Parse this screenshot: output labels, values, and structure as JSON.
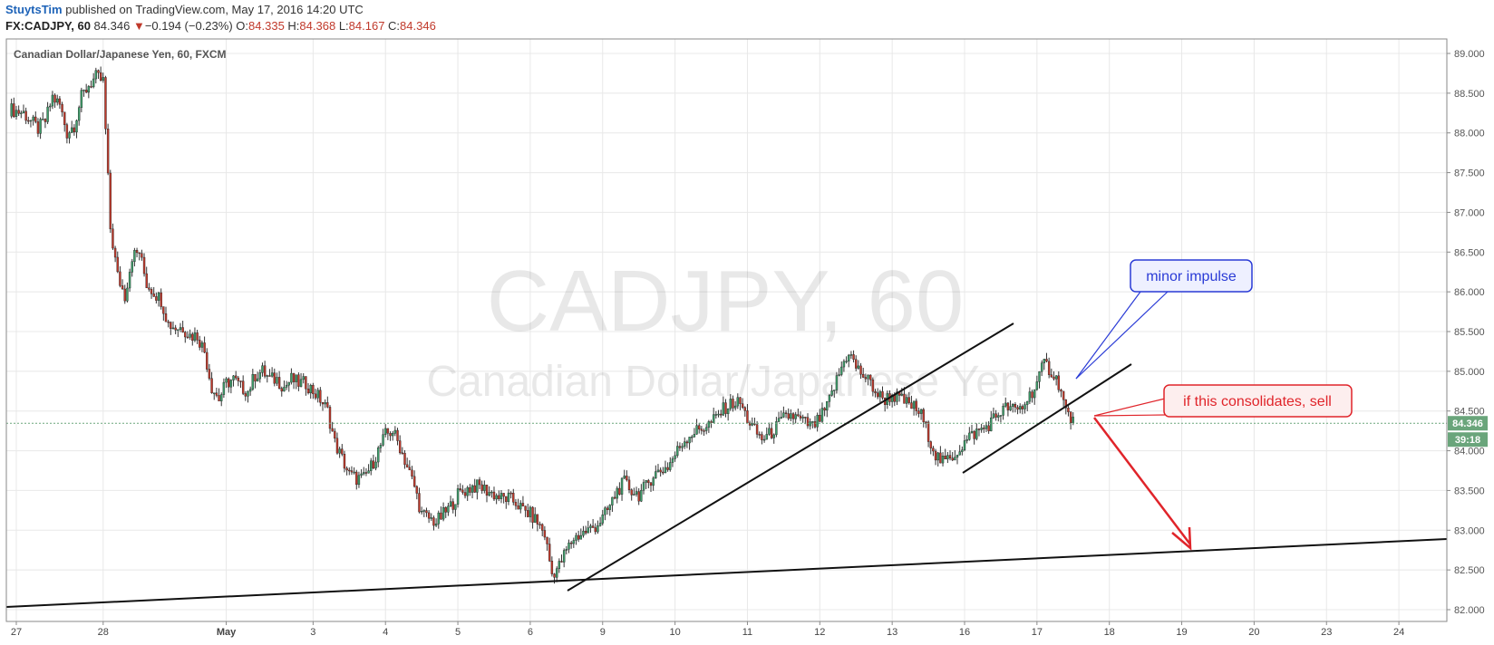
{
  "header": {
    "author": "StuytsTim",
    "published_text": "published on TradingView.com, May 17, 2016 14:20 UTC",
    "symbol": "FX:CADJPY, 60",
    "last_price": "84.346",
    "change_arrow": "▼",
    "change": "−0.194 (−0.23%)",
    "o_label": "O:",
    "o_value": "84.335",
    "h_label": "H:",
    "h_value": "84.368",
    "l_label": "L:",
    "l_value": "84.167",
    "c_label": "C:",
    "c_value": "84.346"
  },
  "colors": {
    "up_candle": "#3d9e6a",
    "down_candle": "#c0392b",
    "wick": "#333333",
    "grid": "#e8e8e8",
    "price_tag": "#6aa57b",
    "annotation_blue": "#2a3bd6",
    "annotation_red": "#e0242a",
    "trendline": "#111111"
  },
  "chart_data": {
    "type": "candlestick",
    "title": "Canadian Dollar/Japanese Yen, 60, FXCM",
    "watermark_symbol": "CADJPY, 60",
    "watermark_name": "Canadian Dollar/Japanese Yen",
    "ylim": [
      81.9,
      89.1
    ],
    "y_ticks": [
      "82.000",
      "82.500",
      "83.000",
      "83.500",
      "84.000",
      "84.500",
      "85.000",
      "85.500",
      "86.000",
      "86.500",
      "87.000",
      "87.500",
      "88.000",
      "88.500",
      "89.000"
    ],
    "x_ticks": [
      {
        "label": "27",
        "index": 1
      },
      {
        "label": "28",
        "index": 13
      },
      {
        "label": "May",
        "index": 30
      },
      {
        "label": "3",
        "index": 42
      },
      {
        "label": "4",
        "index": 52
      },
      {
        "label": "5",
        "index": 62
      },
      {
        "label": "6",
        "index": 72
      },
      {
        "label": "9",
        "index": 82
      },
      {
        "label": "10",
        "index": 92
      },
      {
        "label": "11",
        "index": 102
      },
      {
        "label": "12",
        "index": 112
      },
      {
        "label": "13",
        "index": 122
      },
      {
        "label": "16",
        "index": 132
      },
      {
        "label": "17",
        "index": 142
      },
      {
        "label": "18",
        "index": 152
      },
      {
        "label": "19",
        "index": 162
      },
      {
        "label": "20",
        "index": 172
      },
      {
        "label": "23",
        "index": 182
      },
      {
        "label": "24",
        "index": 192
      }
    ],
    "index_range": [
      0,
      198
    ],
    "current_price": "84.346",
    "countdown": "39:18",
    "close_path": [
      [
        0,
        88.3
      ],
      [
        2,
        88.25
      ],
      [
        4,
        88.05
      ],
      [
        5,
        88.15
      ],
      [
        6,
        88.45
      ],
      [
        7,
        88.35
      ],
      [
        8,
        88.0
      ],
      [
        9,
        88.1
      ],
      [
        10,
        88.45
      ],
      [
        11,
        88.6
      ],
      [
        12,
        88.7
      ],
      [
        13,
        88.65
      ],
      [
        14,
        86.8
      ],
      [
        15,
        86.2
      ],
      [
        16,
        85.95
      ],
      [
        17,
        86.45
      ],
      [
        18,
        86.5
      ],
      [
        19,
        86.1
      ],
      [
        20,
        86.0
      ],
      [
        21,
        85.9
      ],
      [
        22,
        85.6
      ],
      [
        23,
        85.55
      ],
      [
        24,
        85.55
      ],
      [
        25,
        85.45
      ],
      [
        26,
        85.45
      ],
      [
        27,
        85.25
      ],
      [
        28,
        84.8
      ],
      [
        29,
        84.65
      ],
      [
        30,
        84.85
      ],
      [
        31,
        84.9
      ],
      [
        32,
        84.8
      ],
      [
        33,
        84.75
      ],
      [
        34,
        84.95
      ],
      [
        35,
        85.0
      ],
      [
        36,
        84.9
      ],
      [
        37,
        84.9
      ],
      [
        38,
        84.8
      ],
      [
        39,
        84.9
      ],
      [
        40,
        84.85
      ],
      [
        41,
        84.85
      ],
      [
        42,
        84.75
      ],
      [
        43,
        84.65
      ],
      [
        44,
        84.5
      ],
      [
        45,
        84.1
      ],
      [
        46,
        83.9
      ],
      [
        47,
        83.7
      ],
      [
        48,
        83.65
      ],
      [
        49,
        83.65
      ],
      [
        50,
        83.8
      ],
      [
        51,
        84.0
      ],
      [
        52,
        84.2
      ],
      [
        53,
        84.25
      ],
      [
        54,
        84.05
      ],
      [
        55,
        83.8
      ],
      [
        56,
        83.55
      ],
      [
        57,
        83.2
      ],
      [
        58,
        83.15
      ],
      [
        59,
        83.1
      ],
      [
        60,
        83.2
      ],
      [
        61,
        83.3
      ],
      [
        62,
        83.45
      ],
      [
        63,
        83.5
      ],
      [
        64,
        83.55
      ],
      [
        65,
        83.55
      ],
      [
        66,
        83.5
      ],
      [
        67,
        83.45
      ],
      [
        68,
        83.4
      ],
      [
        69,
        83.4
      ],
      [
        70,
        83.35
      ],
      [
        71,
        83.25
      ],
      [
        72,
        83.2
      ],
      [
        73,
        83.1
      ],
      [
        74,
        82.95
      ],
      [
        75,
        82.45
      ],
      [
        76,
        82.55
      ],
      [
        77,
        82.75
      ],
      [
        78,
        82.9
      ],
      [
        79,
        82.95
      ],
      [
        80,
        83.0
      ],
      [
        81,
        83.05
      ],
      [
        82,
        83.15
      ],
      [
        83,
        83.3
      ],
      [
        84,
        83.5
      ],
      [
        85,
        83.6
      ],
      [
        86,
        83.5
      ],
      [
        87,
        83.45
      ],
      [
        88,
        83.55
      ],
      [
        89,
        83.7
      ],
      [
        90,
        83.75
      ],
      [
        91,
        83.8
      ],
      [
        92,
        83.95
      ],
      [
        93,
        84.1
      ],
      [
        94,
        84.2
      ],
      [
        95,
        84.25
      ],
      [
        96,
        84.3
      ],
      [
        97,
        84.35
      ],
      [
        98,
        84.45
      ],
      [
        99,
        84.55
      ],
      [
        100,
        84.6
      ],
      [
        101,
        84.6
      ],
      [
        102,
        84.4
      ],
      [
        103,
        84.25
      ],
      [
        104,
        84.15
      ],
      [
        105,
        84.2
      ],
      [
        106,
        84.3
      ],
      [
        107,
        84.4
      ],
      [
        108,
        84.45
      ],
      [
        109,
        84.4
      ],
      [
        110,
        84.35
      ],
      [
        111,
        84.3
      ],
      [
        112,
        84.4
      ],
      [
        113,
        84.55
      ],
      [
        114,
        84.8
      ],
      [
        115,
        85.05
      ],
      [
        116,
        85.25
      ],
      [
        117,
        85.05
      ],
      [
        118,
        84.95
      ],
      [
        119,
        84.85
      ],
      [
        120,
        84.7
      ],
      [
        121,
        84.65
      ],
      [
        122,
        84.7
      ],
      [
        123,
        84.65
      ],
      [
        124,
        84.6
      ],
      [
        125,
        84.55
      ],
      [
        126,
        84.45
      ],
      [
        127,
        84.2
      ],
      [
        128,
        83.95
      ],
      [
        129,
        83.85
      ],
      [
        130,
        83.9
      ],
      [
        131,
        84.0
      ],
      [
        132,
        84.1
      ],
      [
        133,
        84.2
      ],
      [
        134,
        84.25
      ],
      [
        135,
        84.3
      ],
      [
        136,
        84.4
      ],
      [
        137,
        84.5
      ],
      [
        138,
        84.55
      ],
      [
        139,
        84.5
      ],
      [
        140,
        84.55
      ],
      [
        141,
        84.7
      ],
      [
        142,
        84.85
      ],
      [
        143,
        85.1
      ],
      [
        144,
        85.0
      ],
      [
        145,
        84.85
      ],
      [
        146,
        84.5
      ],
      [
        147,
        84.35
      ]
    ]
  },
  "annotations": {
    "minor_impulse": "minor impulse",
    "sell_note": "if this consolidates, sell"
  }
}
